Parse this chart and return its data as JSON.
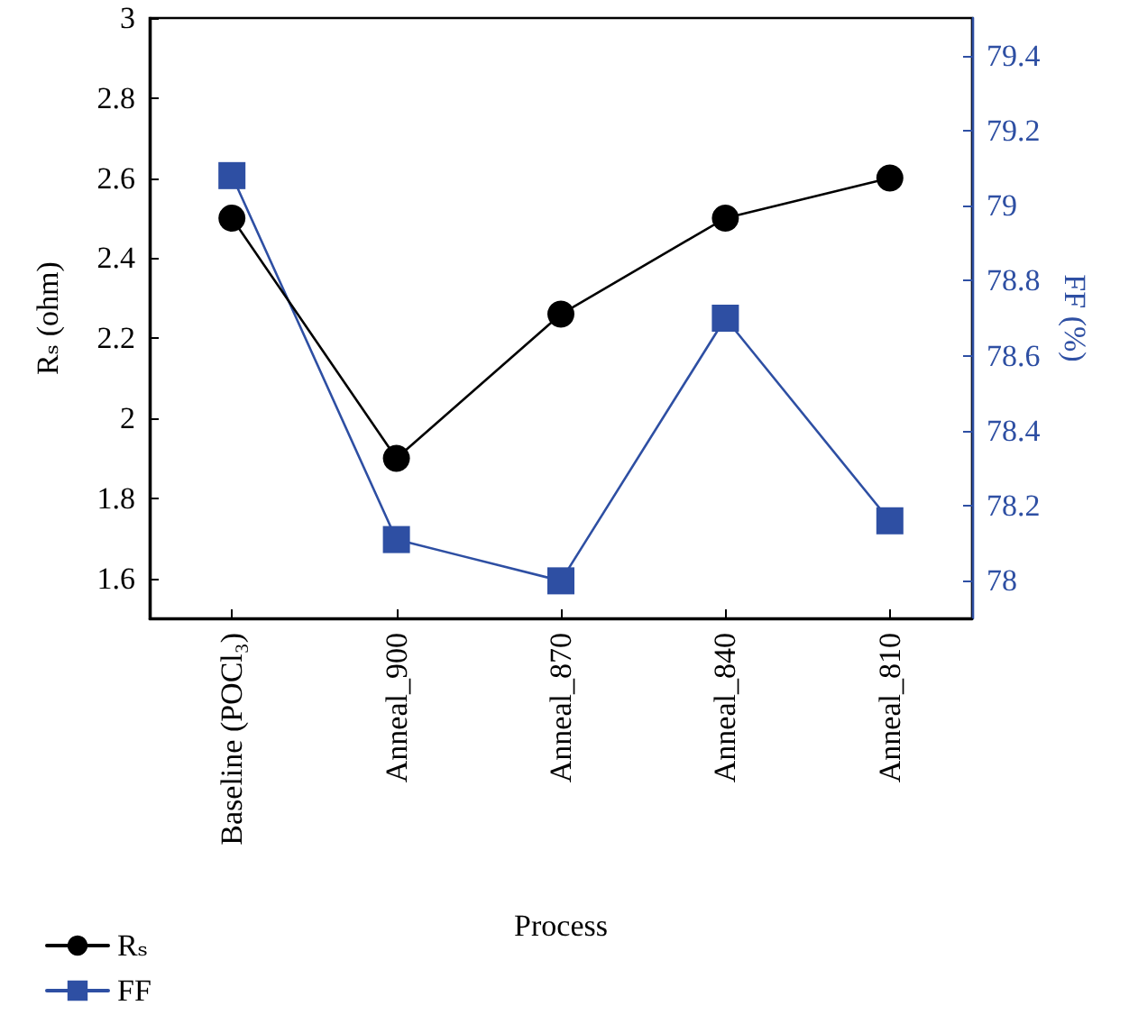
{
  "chart_data": {
    "type": "line",
    "xlabel": "Process",
    "ylabel": "Rₛ (ohm)",
    "y2label": "FF (%)",
    "categories": [
      "Baseline (POCl₃)",
      "Anneal_900",
      "Anneal_870",
      "Anneal_840",
      "Anneal_810"
    ],
    "series": [
      {
        "name": "Rₛ",
        "color": "#000000",
        "marker": "circle",
        "values": [
          2.5,
          1.9,
          2.26,
          2.5,
          2.6
        ]
      },
      {
        "name": "FF",
        "color": "#2e4fa3",
        "marker": "square",
        "axis": "y2",
        "values": [
          79.08,
          78.11,
          78.0,
          78.7,
          78.16
        ]
      }
    ],
    "ylim": [
      1.5,
      3
    ],
    "yticks": [
      1.6,
      1.8,
      2,
      2.2,
      2.4,
      2.6,
      2.8,
      3
    ],
    "y2lim": [
      77.9,
      79.5
    ],
    "y2ticks": [
      78,
      78.2,
      78.4,
      78.6,
      78.8,
      79,
      79.2,
      79.4
    ],
    "grid": false,
    "legend": "bottom left",
    "line_style": "solid"
  }
}
